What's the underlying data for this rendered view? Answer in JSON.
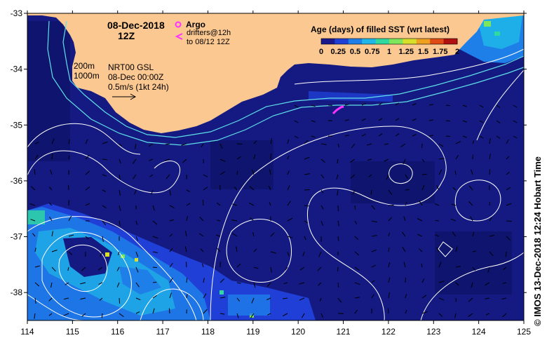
{
  "header": {
    "date": "08-Dec-2018",
    "time": "12Z"
  },
  "legend": {
    "argo_label": "Argo",
    "drifters_line1": "drifters@12h",
    "drifters_line2": "to 08/12 12Z",
    "argo_color": "#ff33ff",
    "drifter_color": "#ff33ff"
  },
  "colorbar": {
    "title": "Age (days) of filled SST (wrt latest)",
    "tick_labels": [
      "0",
      "0.25",
      "0.5",
      "0.75",
      "1",
      "1.25",
      "1.5",
      "1.75",
      "2"
    ],
    "range": [
      0,
      2
    ],
    "colors": [
      "#1a1a8c",
      "#1f3fd6",
      "#1e7fe8",
      "#1fb6e8",
      "#2fd9a0",
      "#7de65a",
      "#d6e02a",
      "#f0a020",
      "#e04a14",
      "#b01010"
    ]
  },
  "isobaths": {
    "line1": "200m",
    "line2": "1000m"
  },
  "product": {
    "line1": "NRT00 GSL",
    "line2": "08-Dec 00:00Z",
    "line3": "0.5m/s (1kt 24h)"
  },
  "axes": {
    "x_ticks": [
      "114",
      "115",
      "116",
      "117",
      "118",
      "119",
      "120",
      "121",
      "122",
      "123",
      "124",
      "125"
    ],
    "y_ticks": [
      "-33",
      "-34",
      "-35",
      "-36",
      "-37",
      "-38"
    ],
    "lon_range": [
      114,
      125
    ],
    "lat_range": [
      -38.5,
      -33
    ]
  },
  "credit": "© IMOS 13-Dec-2018 12:24 Hobart Time",
  "colors": {
    "ocean": "#141a82",
    "ocean_dark": "#0e136a",
    "land": "#fbc891",
    "shelf_line": "#5fe0e8",
    "contour": "#ffffff"
  }
}
